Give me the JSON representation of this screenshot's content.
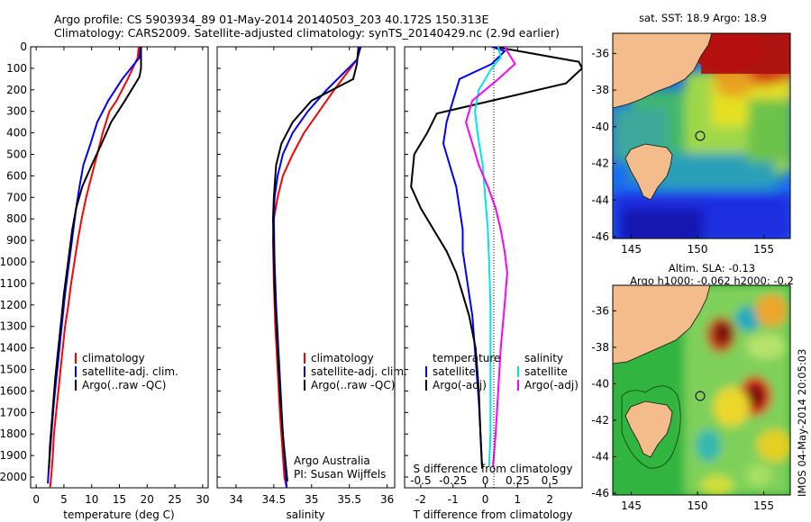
{
  "header": {
    "line1": "Argo profile: CS 5903934_89 01-May-2014 20140503_203 40.172S 150.313E",
    "line2": "Climatology: CARS2009. Satellite-adjusted climatology: synTS_20140429.nc (2.9d earlier)"
  },
  "colors": {
    "climatology": "#ff0000",
    "satellite": "#0000ff",
    "argo": "#000000",
    "sat_s": "#00e6e6",
    "argo_s": "#ff00ff"
  },
  "chart_data": [
    {
      "type": "line",
      "id": "temperature",
      "xlabel": "temperature (deg C)",
      "xlim": [
        -1,
        31
      ],
      "xticks": [
        0,
        5,
        10,
        15,
        20,
        25,
        30
      ],
      "ylim": [
        0,
        2050
      ],
      "yticks": [
        0,
        100,
        200,
        300,
        400,
        500,
        600,
        700,
        800,
        900,
        1000,
        1100,
        1200,
        1300,
        1400,
        1500,
        1600,
        1700,
        1800,
        1900,
        2000
      ],
      "legend": [
        "climatology",
        "satellite-adj. clim.",
        "Argo(..raw -QC)"
      ],
      "series": [
        {
          "name": "climatology",
          "color": "#ff0000",
          "x": [
            18.5,
            18.3,
            16.5,
            14.5,
            13.2,
            12.0,
            11.0,
            10.0,
            9.0,
            8.2,
            7.5,
            6.9,
            6.3,
            5.8,
            5.2,
            4.8,
            4.4,
            4.0,
            3.6,
            3.2,
            3.0,
            2.7,
            2.5
          ],
          "y": [
            0,
            50,
            150,
            250,
            300,
            400,
            500,
            600,
            700,
            800,
            900,
            1000,
            1100,
            1200,
            1300,
            1400,
            1500,
            1600,
            1700,
            1800,
            1900,
            2000,
            2050
          ]
        },
        {
          "name": "satellite-adj. clim.",
          "color": "#0000ff",
          "x": [
            18.8,
            18.6,
            15.5,
            13.0,
            11.0,
            9.8,
            8.5,
            7.8,
            7.2,
            6.7,
            6.2,
            5.7,
            5.2,
            4.8,
            4.4,
            4.0,
            3.6,
            3.2,
            2.9,
            2.6,
            2.3,
            2.1
          ],
          "y": [
            0,
            50,
            150,
            250,
            350,
            450,
            550,
            650,
            750,
            850,
            950,
            1050,
            1150,
            1250,
            1350,
            1450,
            1550,
            1650,
            1750,
            1850,
            1950,
            2030
          ]
        },
        {
          "name": "Argo(..raw -QC)",
          "color": "#000000",
          "x": [
            18.9,
            18.9,
            18.6,
            16.0,
            13.5,
            11.8,
            10.0,
            8.3,
            7.2,
            6.5,
            6.0,
            5.5,
            5.0,
            4.6,
            4.2,
            3.8,
            3.4,
            3.1,
            2.8,
            2.5,
            2.3
          ],
          "y": [
            0,
            100,
            140,
            250,
            350,
            450,
            550,
            650,
            750,
            850,
            950,
            1050,
            1150,
            1250,
            1350,
            1450,
            1550,
            1650,
            1750,
            1850,
            1960
          ]
        }
      ]
    },
    {
      "type": "line",
      "id": "salinity",
      "xlabel": "salinity",
      "xlim": [
        33.75,
        36.1
      ],
      "xticks": [
        34,
        34.5,
        35,
        35.5,
        36
      ],
      "ylim": [
        0,
        2050
      ],
      "legend": [
        "climatology",
        "satellite-adj. clim.",
        "Argo(..raw -QC)"
      ],
      "annotation": [
        "Argo Australia",
        "PI: Susan Wijffels"
      ],
      "series": [
        {
          "name": "climatology",
          "color": "#ff0000",
          "x": [
            35.65,
            35.6,
            35.3,
            35.1,
            34.9,
            34.75,
            34.62,
            34.55,
            34.5,
            34.49,
            34.5,
            34.52,
            34.55,
            34.58,
            34.61,
            34.64,
            34.67
          ],
          "y": [
            0,
            60,
            200,
            300,
            400,
            500,
            600,
            700,
            800,
            900,
            1100,
            1300,
            1500,
            1700,
            1850,
            2000,
            2050
          ]
        },
        {
          "name": "satellite-adj. clim.",
          "color": "#0000ff",
          "x": [
            35.65,
            35.6,
            35.2,
            34.95,
            34.75,
            34.62,
            34.55,
            34.51,
            34.5,
            34.51,
            34.53,
            34.56,
            34.59,
            34.62,
            34.65,
            34.67
          ],
          "y": [
            0,
            60,
            200,
            300,
            400,
            500,
            600,
            700,
            800,
            1000,
            1200,
            1400,
            1600,
            1800,
            1950,
            2050
          ]
        },
        {
          "name": "Argo(..raw -QC)",
          "color": "#000000",
          "x": [
            35.62,
            35.6,
            35.55,
            35.0,
            34.75,
            34.6,
            34.53,
            34.5,
            34.49,
            34.5,
            34.52,
            34.55,
            34.58,
            34.62,
            34.66,
            34.68
          ],
          "y": [
            0,
            80,
            150,
            250,
            350,
            450,
            550,
            700,
            800,
            1000,
            1200,
            1400,
            1600,
            1800,
            1950,
            2020
          ]
        }
      ]
    },
    {
      "type": "line",
      "id": "difference",
      "xlabel": "T difference from climatology",
      "xlabel_top": "S difference from climatology",
      "xlim": [
        -2.5,
        3.0
      ],
      "xticks": [
        -2,
        -1,
        0,
        1,
        2
      ],
      "xticks_top": [
        -0.5,
        -0.25,
        0,
        0.25,
        0.5
      ],
      "ylim": [
        0,
        2050
      ],
      "legend": [
        "temperature",
        "satellite",
        "Argo(-adj)",
        "salinity",
        "satellite",
        "Argo(-adj)"
      ],
      "series": [
        {
          "name": "T satellite",
          "color": "#0000ff",
          "x": [
            0.2,
            0.6,
            0.2,
            -0.8,
            -1.0,
            -1.2,
            -1.3,
            -1.1,
            -0.9,
            -0.8,
            -0.7,
            -0.7,
            -0.6,
            -0.5,
            -0.4,
            -0.35,
            -0.3,
            -0.25,
            -0.2,
            -0.15,
            -0.1
          ],
          "y": [
            0,
            20,
            80,
            150,
            250,
            350,
            450,
            550,
            650,
            750,
            850,
            950,
            1050,
            1150,
            1250,
            1350,
            1450,
            1550,
            1650,
            1800,
            1950
          ]
        },
        {
          "name": "T Argo(-adj)",
          "color": "#000000",
          "x": [
            0.3,
            2.9,
            3.0,
            2.5,
            -1.5,
            -1.8,
            -2.2,
            -2.3,
            -2.0,
            -1.6,
            -1.2,
            -0.9,
            -0.7,
            -0.5,
            -0.3,
            -0.2,
            -0.15,
            -0.1
          ],
          "y": [
            0,
            70,
            100,
            170,
            310,
            400,
            500,
            650,
            750,
            850,
            950,
            1050,
            1150,
            1250,
            1400,
            1600,
            1800,
            1960
          ]
        },
        {
          "name": "S satellite",
          "color": "#00e6e6",
          "x": [
            0.1,
            0.12,
            0.05,
            -0.05,
            -0.08,
            -0.06,
            -0.02,
            0.0,
            0.02,
            0.03,
            0.04,
            0.04,
            0.04,
            0.04,
            0.03
          ],
          "y": [
            0,
            50,
            100,
            200,
            300,
            400,
            550,
            700,
            850,
            1000,
            1200,
            1400,
            1600,
            1800,
            1950
          ]
        },
        {
          "name": "S Argo(-adj)",
          "color": "#ff00ff",
          "x": [
            0.15,
            0.23,
            0.1,
            -0.1,
            -0.15,
            -0.1,
            -0.05,
            0.02,
            0.08,
            0.12,
            0.15,
            0.17,
            0.15,
            0.12,
            0.1,
            0.08,
            0.06
          ],
          "y": [
            0,
            80,
            150,
            250,
            350,
            450,
            550,
            650,
            750,
            850,
            950,
            1050,
            1200,
            1400,
            1600,
            1800,
            1950
          ]
        }
      ]
    },
    {
      "type": "heatmap",
      "id": "sst-map",
      "title": "sat. SST: 18.9  Argo: 18.9",
      "xticks": [
        145,
        150,
        155
      ],
      "yticks": [
        -36,
        -38,
        -40,
        -42,
        -44,
        -46
      ],
      "marker": {
        "lon": 150.313,
        "lat": -40.172
      }
    },
    {
      "type": "heatmap",
      "id": "sla-map",
      "title_line1": "Altim. SLA: -0.13",
      "title_line2": "Argo h1000: -0.062 h2000: -0.2",
      "xticks": [
        145,
        150,
        155
      ],
      "yticks": [
        -36,
        -38,
        -40,
        -42,
        -44,
        -46
      ],
      "marker": {
        "lon": 150.313,
        "lat": -40.172
      }
    }
  ],
  "footer": {
    "stamp": "IMOS 04-May-2014 20:05:03"
  }
}
